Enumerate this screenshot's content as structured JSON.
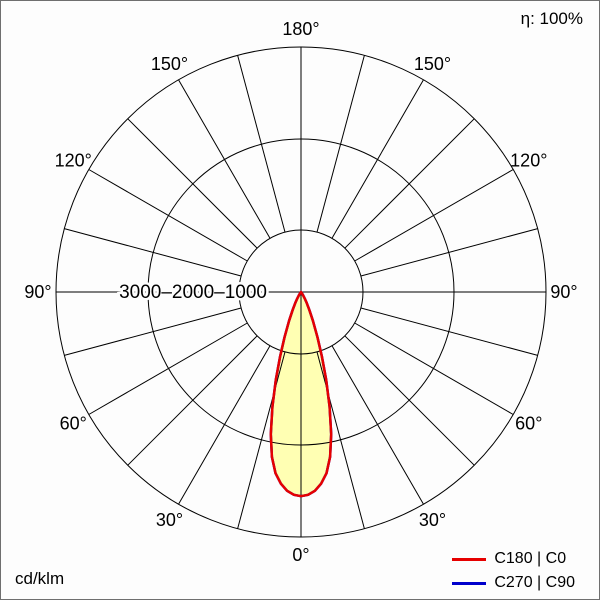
{
  "chart_data": {
    "type": "polar",
    "subtype": "photometric-intensity-distribution",
    "unit": "cd/klm",
    "efficiency": "η: 100%",
    "angle_tick_labels": [
      "0°",
      "30°",
      "60°",
      "90°",
      "120°",
      "150°",
      "180°"
    ],
    "angle_tick_degrees": [
      0,
      30,
      60,
      90,
      120,
      150,
      180
    ],
    "spoke_step_deg": 15,
    "grid_color": "#000000",
    "radial_axis": {
      "text": "3000–2000–1000",
      "ring_values": [
        1000,
        2000,
        3000
      ],
      "max": 3000
    },
    "beam_fill_color": "#ffffb3",
    "series": [
      {
        "name": "C180 | C0",
        "color": "#e60000",
        "gamma_deg": [
          0,
          2,
          4,
          6,
          8,
          10,
          12,
          14,
          16,
          18,
          20,
          22.5,
          25,
          27.5,
          30,
          32.5,
          35,
          40,
          45
        ],
        "intensity": [
          2500,
          2485,
          2440,
          2360,
          2240,
          2050,
          1780,
          1450,
          1120,
          830,
          590,
          380,
          240,
          150,
          90,
          50,
          25,
          8,
          0
        ]
      },
      {
        "name": "C270 | C90",
        "color": "#0000cc",
        "gamma_deg": [
          0,
          2,
          4,
          6,
          8,
          10,
          12,
          14,
          16,
          18,
          20,
          22.5,
          25,
          27.5,
          30,
          32.5,
          35,
          40,
          45
        ],
        "intensity": [
          2500,
          2485,
          2440,
          2360,
          2240,
          2050,
          1780,
          1450,
          1120,
          830,
          590,
          380,
          240,
          150,
          90,
          50,
          25,
          8,
          0
        ]
      }
    ]
  }
}
